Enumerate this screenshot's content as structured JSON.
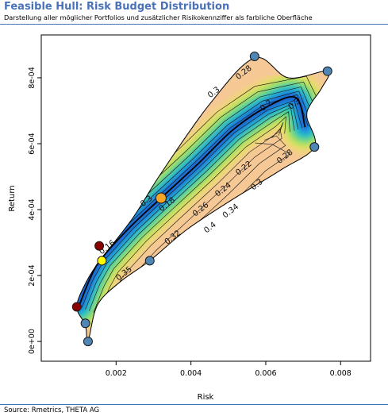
{
  "header": {
    "title": "Feasible Hull: Risk Budget Distribution",
    "subtitle": "Darstellung aller möglicher Portfolios und zusätzlicher Risikokennziffer als farbliche Oberfläche"
  },
  "footer": {
    "source": "Source: Rmetrics, THETA AG"
  },
  "colors": {
    "title": "#4a72b8",
    "frame": "#4a72b8",
    "point_blue": "#4f86b5",
    "point_red": "#8b0000",
    "point_orange": "#f5a623",
    "point_yellow": "#ffff00"
  },
  "chart_data": {
    "type": "contour",
    "xlabel": "Risk",
    "ylabel": "Return",
    "xlim": [
      0.0,
      0.0088
    ],
    "ylim": [
      -6e-05,
      0.00093
    ],
    "x_ticks": [
      {
        "v": 0.002,
        "label": "0.002"
      },
      {
        "v": 0.004,
        "label": "0.004"
      },
      {
        "v": 0.006,
        "label": "0.006"
      },
      {
        "v": 0.008,
        "label": "0.008"
      }
    ],
    "y_ticks": [
      {
        "v": 0.0,
        "label": "0e+00"
      },
      {
        "v": 0.0002,
        "label": "2e-04"
      },
      {
        "v": 0.0004,
        "label": "4e-04"
      },
      {
        "v": 0.0006,
        "label": "6e-04"
      },
      {
        "v": 0.0008,
        "label": "8e-04"
      }
    ],
    "hull": [
      [
        0.00125,
        0.0
      ],
      [
        0.00118,
        5e-05
      ],
      [
        0.00095,
        0.000105
      ],
      [
        0.0012,
        0.00018
      ],
      [
        0.0016,
        0.00025
      ],
      [
        0.00245,
        0.000375
      ],
      [
        0.0032,
        0.00051
      ],
      [
        0.0045,
        0.00072
      ],
      [
        0.0057,
        0.00086
      ],
      [
        0.0066,
        0.0008
      ],
      [
        0.00765,
        0.00082
      ],
      [
        0.0075,
        0.00077
      ],
      [
        0.0072,
        0.00072
      ],
      [
        0.0071,
        0.00068
      ],
      [
        0.0073,
        0.00059
      ],
      [
        0.0064,
        0.00052
      ],
      [
        0.0051,
        0.00043
      ],
      [
        0.0039,
        0.00034
      ],
      [
        0.0029,
        0.000245
      ],
      [
        0.0021,
        0.00018
      ],
      [
        0.0015,
        0.00011
      ]
    ],
    "frontier": [
      [
        0.001,
        0.000105
      ],
      [
        0.0013,
        0.00019
      ],
      [
        0.0016,
        0.00025
      ],
      [
        0.0024,
        0.00035
      ],
      [
        0.0032,
        0.000435
      ],
      [
        0.0042,
        0.00054
      ],
      [
        0.0051,
        0.00064
      ],
      [
        0.006,
        0.00071
      ],
      [
        0.0068,
        0.00074
      ],
      [
        0.00705,
        0.00065
      ]
    ],
    "contour_labels": [
      {
        "x": 0.00545,
        "y": 0.00081,
        "label": "0.28"
      },
      {
        "x": 0.00465,
        "y": 0.00075,
        "label": "0.3"
      },
      {
        "x": 0.00605,
        "y": 0.00071,
        "label": "0.2"
      },
      {
        "x": 0.0068,
        "y": 0.000715,
        "label": "0.3"
      },
      {
        "x": 0.00545,
        "y": 0.00052,
        "label": "0.22"
      },
      {
        "x": 0.00655,
        "y": 0.000555,
        "label": "0.28"
      },
      {
        "x": 0.0049,
        "y": 0.000455,
        "label": "0.24"
      },
      {
        "x": 0.0058,
        "y": 0.00047,
        "label": "0.3"
      },
      {
        "x": 0.0043,
        "y": 0.000395,
        "label": "0.26"
      },
      {
        "x": 0.0051,
        "y": 0.00039,
        "label": "0.34"
      },
      {
        "x": 0.00285,
        "y": 0.00042,
        "label": "0.3"
      },
      {
        "x": 0.0034,
        "y": 0.00041,
        "label": "0.18"
      },
      {
        "x": 0.00355,
        "y": 0.00031,
        "label": "0.32"
      },
      {
        "x": 0.00455,
        "y": 0.00034,
        "label": "0.4"
      },
      {
        "x": 0.0018,
        "y": 0.00028,
        "label": "0.16"
      },
      {
        "x": 0.00225,
        "y": 0.0002,
        "label": "0.35"
      }
    ],
    "points": [
      {
        "x": 0.00125,
        "y": 0.0,
        "color": "blue"
      },
      {
        "x": 0.00118,
        "y": 5.5e-05,
        "color": "blue"
      },
      {
        "x": 0.00095,
        "y": 0.000105,
        "color": "red"
      },
      {
        "x": 0.00155,
        "y": 0.00029,
        "color": "red"
      },
      {
        "x": 0.00162,
        "y": 0.000245,
        "color": "yellow"
      },
      {
        "x": 0.0029,
        "y": 0.000245,
        "color": "blue"
      },
      {
        "x": 0.0032,
        "y": 0.000435,
        "color": "orange"
      },
      {
        "x": 0.0057,
        "y": 0.000865,
        "color": "blue"
      },
      {
        "x": 0.00765,
        "y": 0.00082,
        "color": "blue"
      },
      {
        "x": 0.0073,
        "y": 0.00059,
        "color": "blue"
      }
    ]
  }
}
